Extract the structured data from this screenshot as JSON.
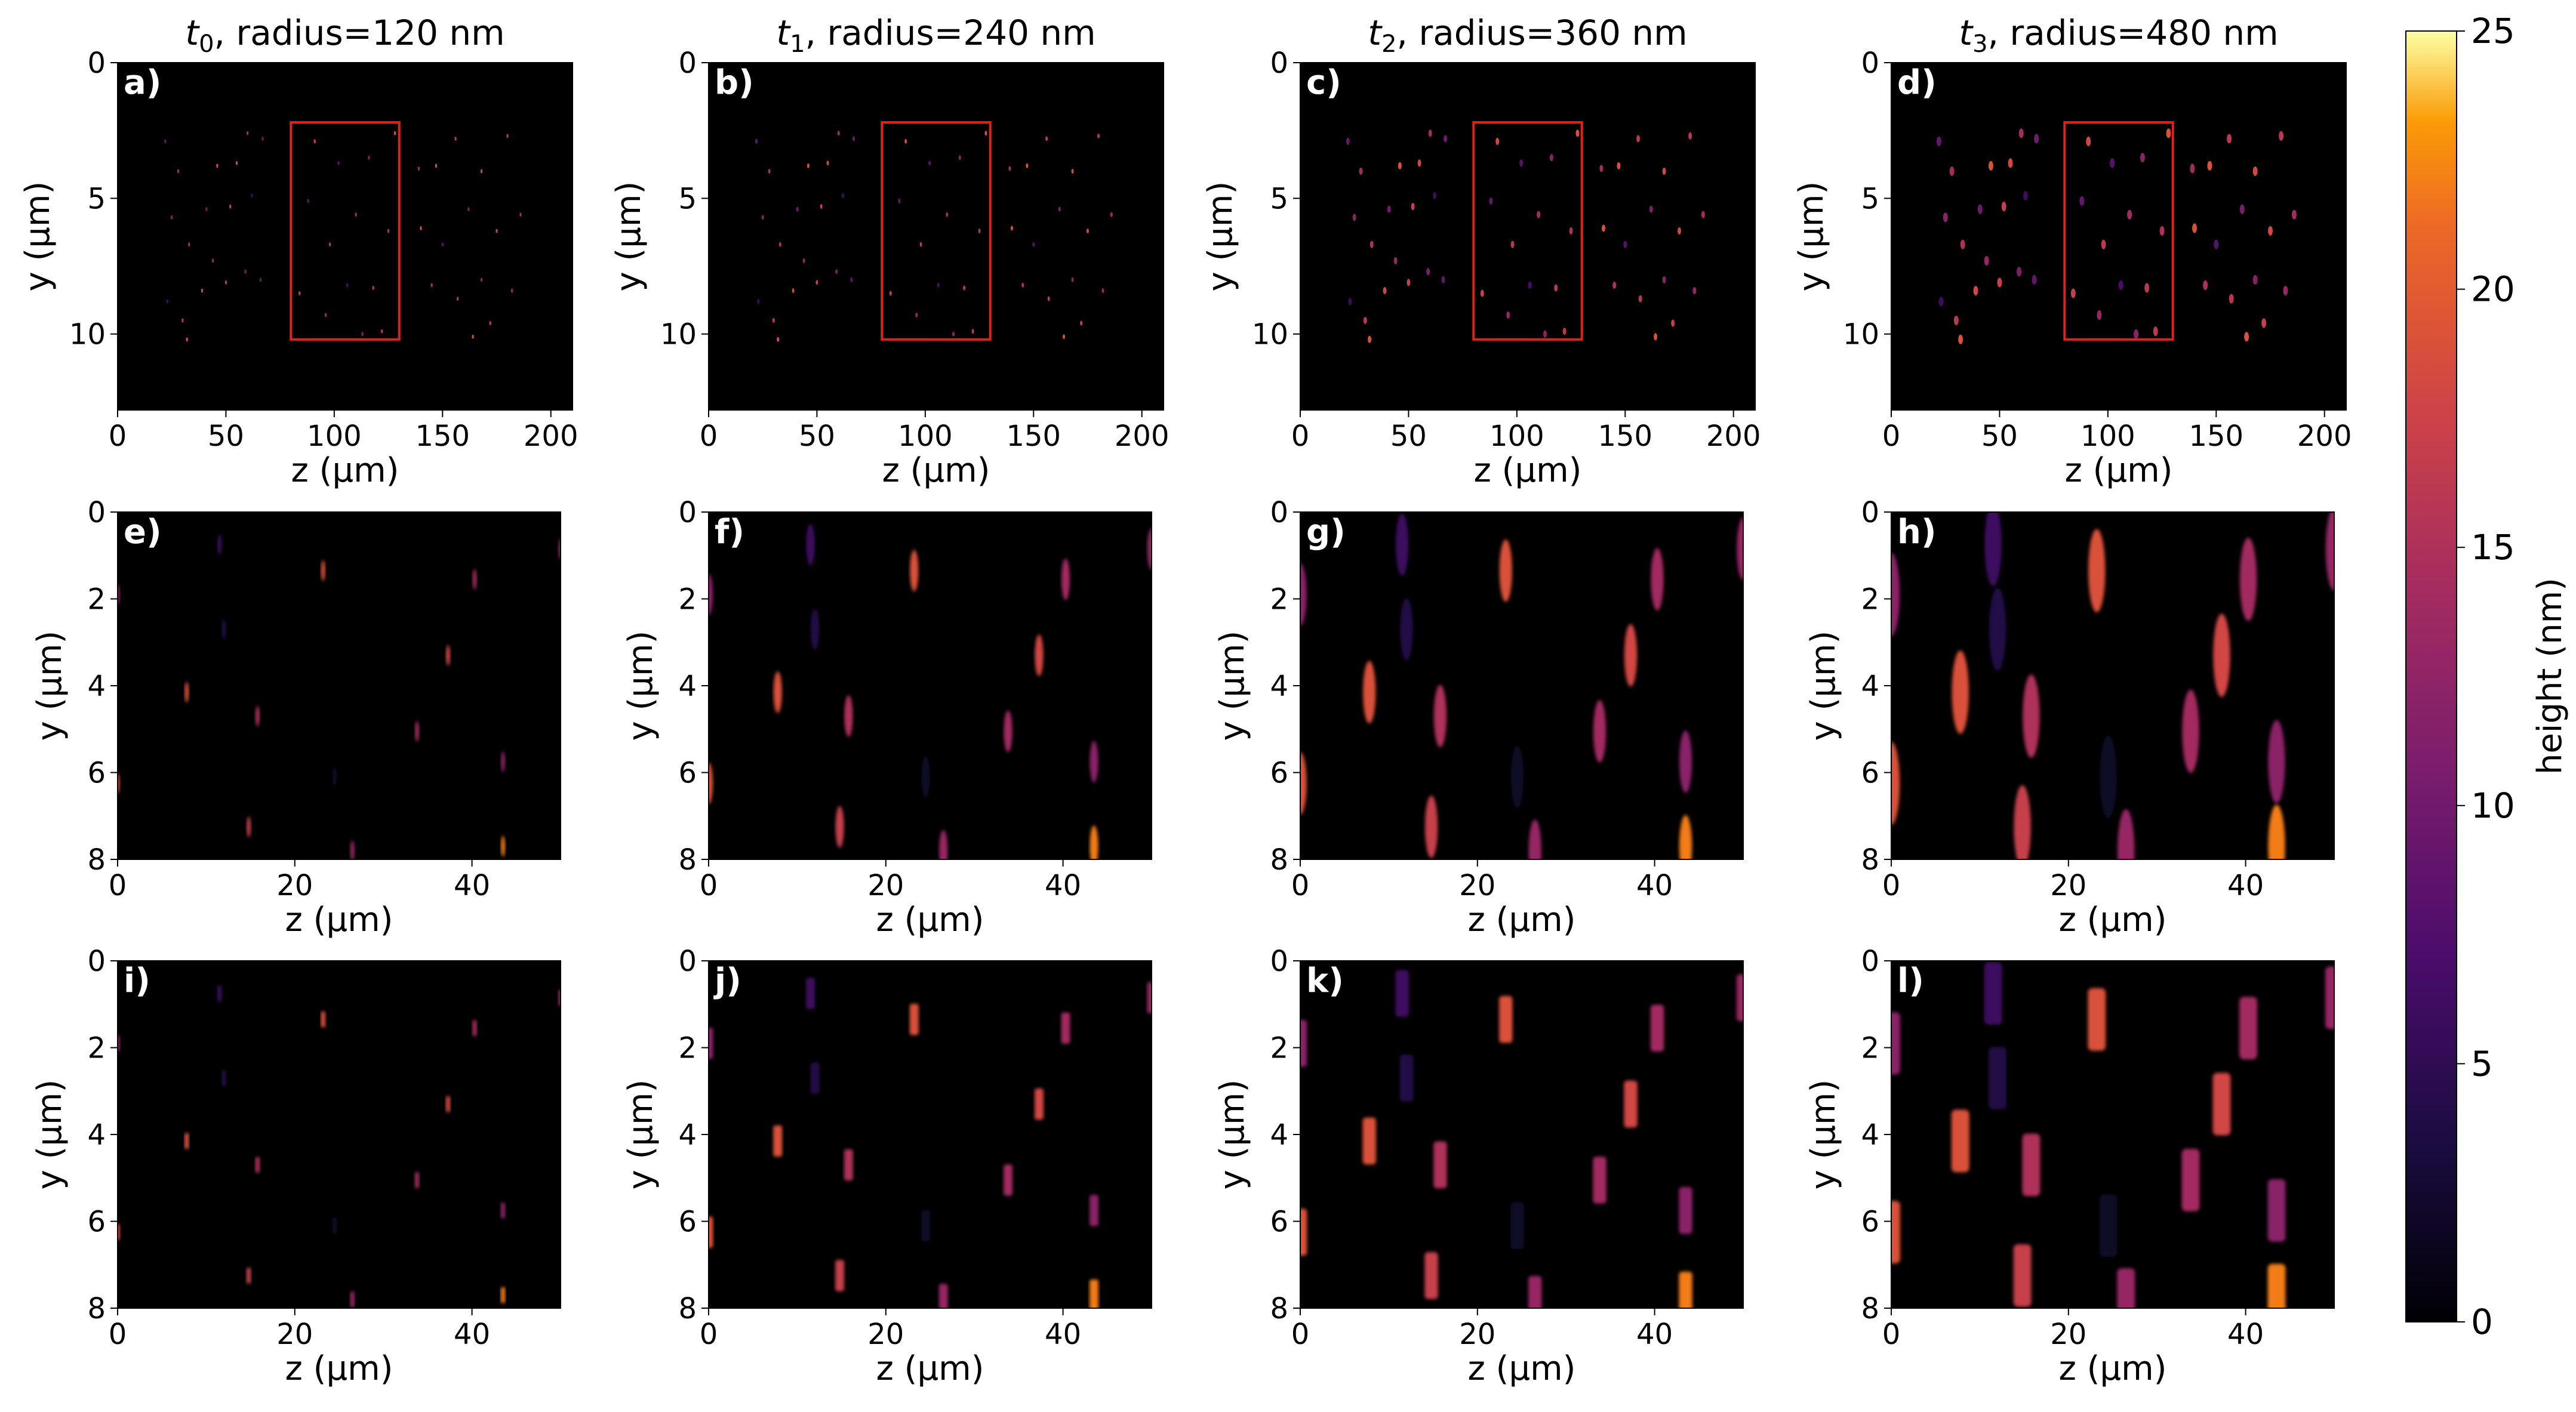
{
  "figure": {
    "colormap": "inferno",
    "background": "#000000",
    "box_color": "#e0201c"
  },
  "colorbar": {
    "label": "height (nm)",
    "min": 0,
    "max": 25,
    "ticks": [
      "0",
      "5",
      "10",
      "15",
      "20",
      "25"
    ]
  },
  "chart_data": [
    {
      "type": "heatmap",
      "panel": "a)",
      "title_t": "t",
      "title_sub": "0",
      "title_rest": ", radius=120 nm",
      "xlabel": "z (μm)",
      "ylabel": "y (μm)",
      "xlim": [
        0,
        210
      ],
      "ylim": [
        0,
        12.8
      ],
      "xticks": [
        "0",
        "50",
        "100",
        "150",
        "200"
      ],
      "yticks": [
        "0",
        "5",
        "10"
      ],
      "highlight_box": {
        "x": [
          80,
          130
        ],
        "y": [
          2.2,
          10.2
        ]
      },
      "shape": "dot",
      "size": 0.5
    },
    {
      "type": "heatmap",
      "panel": "b)",
      "title_t": "t",
      "title_sub": "1",
      "title_rest": ", radius=240 nm",
      "xlabel": "z (μm)",
      "ylabel": "y (μm)",
      "xlim": [
        0,
        210
      ],
      "ylim": [
        0,
        12.8
      ],
      "xticks": [
        "0",
        "50",
        "100",
        "150",
        "200"
      ],
      "yticks": [
        "0",
        "5",
        "10"
      ],
      "highlight_box": {
        "x": [
          80,
          130
        ],
        "y": [
          2.2,
          10.2
        ]
      },
      "shape": "ellipse",
      "size": 1.0
    },
    {
      "type": "heatmap",
      "panel": "c)",
      "title_t": "t",
      "title_sub": "2",
      "title_rest": ", radius=360 nm",
      "xlabel": "z (μm)",
      "ylabel": "y (μm)",
      "xlim": [
        0,
        210
      ],
      "ylim": [
        0,
        12.8
      ],
      "xticks": [
        "0",
        "50",
        "100",
        "150",
        "200"
      ],
      "yticks": [
        "0",
        "5",
        "10"
      ],
      "highlight_box": {
        "x": [
          80,
          130
        ],
        "y": [
          2.2,
          10.2
        ]
      },
      "shape": "ellipse",
      "size": 1.5
    },
    {
      "type": "heatmap",
      "panel": "d)",
      "title_t": "t",
      "title_sub": "3",
      "title_rest": ", radius=480 nm",
      "xlabel": "z (μm)",
      "ylabel": "y (μm)",
      "xlim": [
        0,
        210
      ],
      "ylim": [
        0,
        12.8
      ],
      "xticks": [
        "0",
        "50",
        "100",
        "150",
        "200"
      ],
      "yticks": [
        "0",
        "5",
        "10"
      ],
      "highlight_box": {
        "x": [
          80,
          130
        ],
        "y": [
          2.2,
          10.2
        ]
      },
      "shape": "ellipse",
      "size": 2.0
    },
    {
      "type": "heatmap",
      "panel": "e)",
      "xlabel": "z (μm)",
      "ylabel": "y (μm)",
      "xlim": [
        0,
        50
      ],
      "ylim": [
        0,
        8
      ],
      "xticks": [
        "0",
        "20",
        "40"
      ],
      "yticks": [
        "0",
        "2",
        "4",
        "6",
        "8"
      ],
      "shape": "circle",
      "radius": 0.12
    },
    {
      "type": "heatmap",
      "panel": "f)",
      "xlabel": "z (μm)",
      "ylabel": "y (μm)",
      "xlim": [
        0,
        50
      ],
      "ylim": [
        0,
        8
      ],
      "xticks": [
        "0",
        "20",
        "40"
      ],
      "yticks": [
        "0",
        "2",
        "4",
        "6",
        "8"
      ],
      "shape": "circle",
      "radius": 0.24
    },
    {
      "type": "heatmap",
      "panel": "g)",
      "xlabel": "z (μm)",
      "ylabel": "y (μm)",
      "xlim": [
        0,
        50
      ],
      "ylim": [
        0,
        8
      ],
      "xticks": [
        "0",
        "20",
        "40"
      ],
      "yticks": [
        "0",
        "2",
        "4",
        "6",
        "8"
      ],
      "shape": "circle",
      "radius": 0.36
    },
    {
      "type": "heatmap",
      "panel": "h)",
      "xlabel": "z (μm)",
      "ylabel": "y (μm)",
      "xlim": [
        0,
        50
      ],
      "ylim": [
        0,
        8
      ],
      "xticks": [
        "0",
        "20",
        "40"
      ],
      "yticks": [
        "0",
        "2",
        "4",
        "6",
        "8"
      ],
      "shape": "circle",
      "radius": 0.48
    },
    {
      "type": "heatmap",
      "panel": "i)",
      "xlabel": "z (μm)",
      "ylabel": "y (μm)",
      "xlim": [
        0,
        50
      ],
      "ylim": [
        0,
        8
      ],
      "xticks": [
        "0",
        "20",
        "40"
      ],
      "yticks": [
        "0",
        "2",
        "4",
        "6",
        "8"
      ],
      "shape": "rect",
      "radius": 0.12
    },
    {
      "type": "heatmap",
      "panel": "j)",
      "xlabel": "z (μm)",
      "ylabel": "y (μm)",
      "xlim": [
        0,
        50
      ],
      "ylim": [
        0,
        8
      ],
      "xticks": [
        "0",
        "20",
        "40"
      ],
      "yticks": [
        "0",
        "2",
        "4",
        "6",
        "8"
      ],
      "shape": "rect",
      "radius": 0.24
    },
    {
      "type": "heatmap",
      "panel": "k)",
      "xlabel": "z (μm)",
      "ylabel": "y (μm)",
      "xlim": [
        0,
        50
      ],
      "ylim": [
        0,
        8
      ],
      "xticks": [
        "0",
        "20",
        "40"
      ],
      "yticks": [
        "0",
        "2",
        "4",
        "6",
        "8"
      ],
      "shape": "rect",
      "radius": 0.36
    },
    {
      "type": "heatmap",
      "panel": "l)",
      "xlabel": "z (μm)",
      "ylabel": "y (μm)",
      "xlim": [
        0,
        50
      ],
      "ylim": [
        0,
        8
      ],
      "xticks": [
        "0",
        "20",
        "40"
      ],
      "yticks": [
        "0",
        "2",
        "4",
        "6",
        "8"
      ],
      "shape": "rect",
      "radius": 0.48
    }
  ],
  "particles_zoom": [
    {
      "z": 11.5,
      "y": 0.75,
      "h": 6
    },
    {
      "z": 23.2,
      "y": 1.35,
      "h": 19
    },
    {
      "z": 40.3,
      "y": 1.55,
      "h": 14
    },
    {
      "z": 50,
      "y": 0.85,
      "h": 13
    },
    {
      "z": 0,
      "y": 1.9,
      "h": 12
    },
    {
      "z": 12,
      "y": 2.7,
      "h": 4
    },
    {
      "z": 37.3,
      "y": 3.3,
      "h": 18
    },
    {
      "z": 7.8,
      "y": 4.15,
      "h": 19
    },
    {
      "z": 15.8,
      "y": 4.7,
      "h": 15
    },
    {
      "z": 33.8,
      "y": 5.05,
      "h": 14
    },
    {
      "z": 24.5,
      "y": 6.1,
      "h": 2
    },
    {
      "z": 43.5,
      "y": 5.75,
      "h": 12
    },
    {
      "z": 0,
      "y": 6.25,
      "h": 19
    },
    {
      "z": 14.8,
      "y": 7.25,
      "h": 17
    },
    {
      "z": 26.5,
      "y": 7.8,
      "h": 13
    },
    {
      "z": 43.5,
      "y": 7.7,
      "h": 22
    }
  ],
  "particles_wide": [
    {
      "z": 22,
      "y": 2.9,
      "h": 9
    },
    {
      "z": 28,
      "y": 4.0,
      "h": 14
    },
    {
      "z": 46,
      "y": 3.8,
      "h": 19
    },
    {
      "z": 55,
      "y": 3.7,
      "h": 18
    },
    {
      "z": 60,
      "y": 2.6,
      "h": 14
    },
    {
      "z": 25,
      "y": 5.7,
      "h": 12
    },
    {
      "z": 33,
      "y": 6.7,
      "h": 15
    },
    {
      "z": 41,
      "y": 5.4,
      "h": 10
    },
    {
      "z": 52,
      "y": 5.3,
      "h": 17
    },
    {
      "z": 62,
      "y": 4.9,
      "h": 6
    },
    {
      "z": 23,
      "y": 8.8,
      "h": 6
    },
    {
      "z": 30,
      "y": 9.5,
      "h": 16
    },
    {
      "z": 39,
      "y": 8.4,
      "h": 18
    },
    {
      "z": 50,
      "y": 8.1,
      "h": 17
    },
    {
      "z": 59,
      "y": 7.7,
      "h": 11
    },
    {
      "z": 32,
      "y": 10.2,
      "h": 19
    },
    {
      "z": 44,
      "y": 7.3,
      "h": 13
    },
    {
      "z": 67,
      "y": 2.8,
      "h": 10
    },
    {
      "z": 66,
      "y": 8.0,
      "h": 9
    },
    {
      "z": 91,
      "y": 2.9,
      "h": 18
    },
    {
      "z": 102,
      "y": 3.7,
      "h": 8
    },
    {
      "z": 116,
      "y": 3.5,
      "h": 12
    },
    {
      "z": 128,
      "y": 2.6,
      "h": 19
    },
    {
      "z": 88,
      "y": 5.1,
      "h": 9
    },
    {
      "z": 98,
      "y": 6.7,
      "h": 16
    },
    {
      "z": 110,
      "y": 5.6,
      "h": 14
    },
    {
      "z": 125,
      "y": 6.2,
      "h": 15
    },
    {
      "z": 84,
      "y": 8.5,
      "h": 17
    },
    {
      "z": 96,
      "y": 9.3,
      "h": 13
    },
    {
      "z": 106,
      "y": 8.2,
      "h": 7
    },
    {
      "z": 118,
      "y": 8.3,
      "h": 16
    },
    {
      "z": 122,
      "y": 9.9,
      "h": 16
    },
    {
      "z": 113,
      "y": 10.0,
      "h": 12
    },
    {
      "z": 139,
      "y": 3.9,
      "h": 14
    },
    {
      "z": 147,
      "y": 3.8,
      "h": 19
    },
    {
      "z": 156,
      "y": 2.8,
      "h": 16
    },
    {
      "z": 168,
      "y": 4.0,
      "h": 18
    },
    {
      "z": 180,
      "y": 2.7,
      "h": 16
    },
    {
      "z": 140,
      "y": 6.1,
      "h": 19
    },
    {
      "z": 150,
      "y": 6.7,
      "h": 8
    },
    {
      "z": 162,
      "y": 5.4,
      "h": 11
    },
    {
      "z": 175,
      "y": 6.2,
      "h": 18
    },
    {
      "z": 186,
      "y": 5.6,
      "h": 14
    },
    {
      "z": 145,
      "y": 8.2,
      "h": 15
    },
    {
      "z": 157,
      "y": 8.7,
      "h": 16
    },
    {
      "z": 168,
      "y": 8.0,
      "h": 12
    },
    {
      "z": 182,
      "y": 8.4,
      "h": 13
    },
    {
      "z": 164,
      "y": 10.1,
      "h": 19
    },
    {
      "z": 172,
      "y": 9.6,
      "h": 17
    }
  ]
}
